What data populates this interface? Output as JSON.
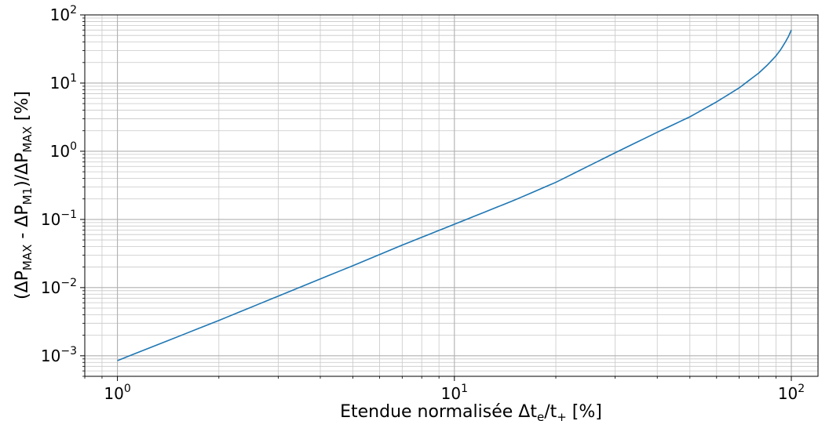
{
  "chart_data": {
    "type": "line",
    "title": "",
    "xlabel": {
      "parts": [
        {
          "text": "Etendue normalisée Δt",
          "sub": false
        },
        {
          "text": "e",
          "sub": true
        },
        {
          "text": "/t",
          "sub": false
        },
        {
          "text": "+",
          "sub": true
        },
        {
          "text": "   [%]",
          "sub": false
        }
      ]
    },
    "ylabel": {
      "parts": [
        {
          "text": "(ΔP",
          "sub": false
        },
        {
          "text": "MAX",
          "sub": true
        },
        {
          "text": " - ΔP",
          "sub": false
        },
        {
          "text": "M1",
          "sub": true
        },
        {
          "text": ")/ΔP",
          "sub": false
        },
        {
          "text": "MAX",
          "sub": true
        },
        {
          "text": " [%]",
          "sub": false
        }
      ]
    },
    "x_scale": "log",
    "y_scale": "log",
    "xlim": [
      0.8,
      120
    ],
    "ylim": [
      0.0005,
      100
    ],
    "grid": "major-and-minor",
    "line_color": "#1f77b4",
    "x_ticks": [
      {
        "value": 1,
        "base": "10",
        "exp": "0"
      },
      {
        "value": 10,
        "base": "10",
        "exp": "1"
      },
      {
        "value": 100,
        "base": "10",
        "exp": "2"
      }
    ],
    "y_ticks": [
      {
        "value": 0.001,
        "base": "10",
        "exp": "−3"
      },
      {
        "value": 0.01,
        "base": "10",
        "exp": "−2"
      },
      {
        "value": 0.1,
        "base": "10",
        "exp": "−1"
      },
      {
        "value": 1,
        "base": "10",
        "exp": "0"
      },
      {
        "value": 10,
        "base": "10",
        "exp": "1"
      },
      {
        "value": 100,
        "base": "10",
        "exp": "2"
      }
    ],
    "series": [
      {
        "x": [
          1,
          2,
          3,
          5,
          7,
          10,
          15,
          20,
          30,
          40,
          50,
          60,
          70,
          80,
          85,
          90,
          93,
          96,
          98,
          100
        ],
        "y": [
          0.00085,
          0.0033,
          0.0075,
          0.021,
          0.042,
          0.085,
          0.19,
          0.35,
          0.95,
          1.9,
          3.2,
          5.3,
          8.5,
          14,
          18.5,
          25,
          31,
          40,
          48,
          60
        ]
      }
    ]
  }
}
